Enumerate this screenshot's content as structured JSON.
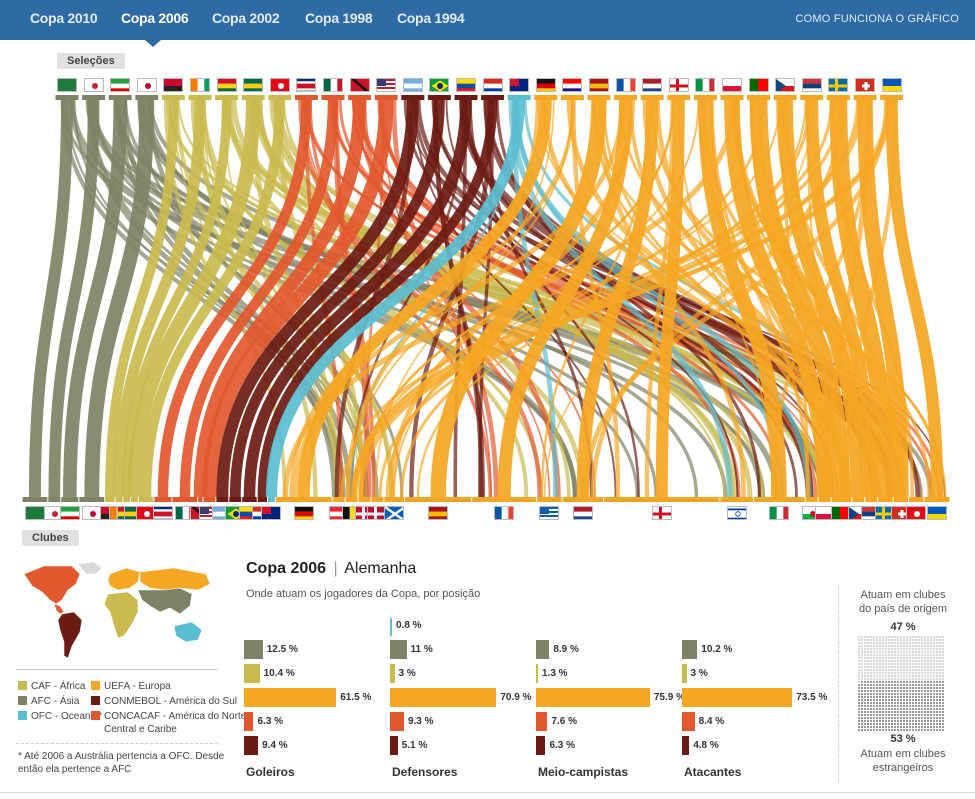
{
  "nav": {
    "tabs": [
      "Copa 2010",
      "Copa 2006",
      "Copa 2002",
      "Copa 1998",
      "Copa 1994"
    ],
    "active_index": 1,
    "how_it_works": "COMO FUNCIONA O GRÁFICO"
  },
  "labels": {
    "selecoes": "Seleções",
    "clubes": "Clubes"
  },
  "colors": {
    "CAF": "#c9bb4f",
    "AFC": "#7f8264",
    "OFC": "#5bbed0",
    "UEFA": "#f5a623",
    "CONMEBOL": "#6b1b13",
    "CONCACAF": "#e2582e"
  },
  "teams_top": [
    {
      "id": "ksa",
      "conf": "AFC"
    },
    {
      "id": "kor",
      "conf": "AFC"
    },
    {
      "id": "irn",
      "conf": "AFC"
    },
    {
      "id": "jpn",
      "conf": "AFC"
    },
    {
      "id": "ang",
      "conf": "CAF"
    },
    {
      "id": "civ",
      "conf": "CAF"
    },
    {
      "id": "gha",
      "conf": "CAF"
    },
    {
      "id": "tog",
      "conf": "CAF"
    },
    {
      "id": "tun",
      "conf": "CAF"
    },
    {
      "id": "crc",
      "conf": "CONCACAF"
    },
    {
      "id": "mex",
      "conf": "CONCACAF"
    },
    {
      "id": "tri",
      "conf": "CONCACAF"
    },
    {
      "id": "usa",
      "conf": "CONCACAF"
    },
    {
      "id": "arg",
      "conf": "CONMEBOL"
    },
    {
      "id": "bra",
      "conf": "CONMEBOL"
    },
    {
      "id": "ecu",
      "conf": "CONMEBOL"
    },
    {
      "id": "par",
      "conf": "CONMEBOL"
    },
    {
      "id": "aus",
      "conf": "OFC"
    },
    {
      "id": "ger",
      "conf": "UEFA"
    },
    {
      "id": "cro",
      "conf": "UEFA"
    },
    {
      "id": "esp",
      "conf": "UEFA"
    },
    {
      "id": "fra",
      "conf": "UEFA"
    },
    {
      "id": "ned",
      "conf": "UEFA"
    },
    {
      "id": "eng",
      "conf": "UEFA"
    },
    {
      "id": "ita",
      "conf": "UEFA"
    },
    {
      "id": "pol",
      "conf": "UEFA"
    },
    {
      "id": "por",
      "conf": "UEFA"
    },
    {
      "id": "cze",
      "conf": "UEFA"
    },
    {
      "id": "scg",
      "conf": "UEFA"
    },
    {
      "id": "swe",
      "conf": "UEFA"
    },
    {
      "id": "sui",
      "conf": "UEFA"
    },
    {
      "id": "ukr",
      "conf": "UEFA"
    }
  ],
  "clubs_bottom": [
    {
      "id": "ksa",
      "conf": "AFC",
      "w": 1
    },
    {
      "id": "kor",
      "conf": "AFC",
      "w": 0.5
    },
    {
      "id": "irn",
      "conf": "AFC",
      "w": 0.7
    },
    {
      "id": "jpn",
      "conf": "AFC",
      "w": 1
    },
    {
      "id": "ang",
      "conf": "CAF",
      "w": 0.4
    },
    {
      "id": "civ",
      "conf": "CAF",
      "w": 0.3
    },
    {
      "id": "gha",
      "conf": "CAF",
      "w": 0.3
    },
    {
      "id": "tog",
      "conf": "CAF",
      "w": 0.3
    },
    {
      "id": "tun",
      "conf": "CAF",
      "w": 0.6
    },
    {
      "id": "crc",
      "conf": "CONCACAF",
      "w": 0.7
    },
    {
      "id": "mex",
      "conf": "CONCACAF",
      "w": 1
    },
    {
      "id": "tri",
      "conf": "CONCACAF",
      "w": 0.2
    },
    {
      "id": "usa",
      "conf": "CONCACAF",
      "w": 0.5
    },
    {
      "id": "arg",
      "conf": "CONMEBOL",
      "w": 0.5
    },
    {
      "id": "bra",
      "conf": "CONMEBOL",
      "w": 0.5
    },
    {
      "id": "ecu",
      "conf": "CONMEBOL",
      "w": 0.6
    },
    {
      "id": "par",
      "conf": "CONMEBOL",
      "w": 0.4
    },
    {
      "id": "aus",
      "conf": "OFC",
      "w": 0.3
    },
    {
      "id": "ger",
      "conf": "UEFA",
      "w": 2.2
    },
    {
      "id": "aut",
      "conf": "UEFA",
      "w": 0.5
    },
    {
      "id": "bel",
      "conf": "UEFA",
      "w": 0.5
    },
    {
      "id": "den",
      "conf": "UEFA",
      "w": 0.5
    },
    {
      "id": "nor",
      "conf": "UEFA",
      "w": 0.5
    },
    {
      "id": "sco",
      "conf": "UEFA",
      "w": 0.8
    },
    {
      "id": "esp",
      "conf": "UEFA",
      "w": 2.6
    },
    {
      "id": "fra",
      "conf": "UEFA",
      "w": 2.5
    },
    {
      "id": "gre",
      "conf": "UEFA",
      "w": 1
    },
    {
      "id": "ned",
      "conf": "UEFA",
      "w": 1.6
    },
    {
      "id": "eng",
      "conf": "UEFA",
      "w": 4.5
    },
    {
      "id": "isr",
      "conf": "UEFA",
      "w": 1.3
    },
    {
      "id": "ita",
      "conf": "UEFA",
      "w": 2
    },
    {
      "id": "wal",
      "conf": "UEFA",
      "w": 0.5
    },
    {
      "id": "pol",
      "conf": "UEFA",
      "w": 0.5
    },
    {
      "id": "por",
      "conf": "UEFA",
      "w": 0.8
    },
    {
      "id": "cze",
      "conf": "UEFA",
      "w": 0.5
    },
    {
      "id": "scg",
      "conf": "UEFA",
      "w": 0.5
    },
    {
      "id": "swe",
      "conf": "UEFA",
      "w": 0.6
    },
    {
      "id": "sui",
      "conf": "UEFA",
      "w": 0.6
    },
    {
      "id": "tur",
      "conf": "UEFA",
      "w": 0.6
    },
    {
      "id": "ukr",
      "conf": "UEFA",
      "w": 1
    }
  ],
  "legend": [
    {
      "code": "CAF",
      "text": "CAF - África"
    },
    {
      "code": "AFC",
      "text": "AFC - Ásia"
    },
    {
      "code": "OFC",
      "text": "OFC - Oceania*"
    },
    {
      "code": "UEFA",
      "text": "UEFA - Europa"
    },
    {
      "code": "CONMEBOL",
      "text": "CONMEBOL - América do Sul"
    },
    {
      "code": "CONCACAF",
      "text": "CONCACAF - América do Norte,"
    },
    {
      "code": "CONCACAF2",
      "text": "Central e Caribe"
    }
  ],
  "footnote": [
    "* Até 2006 a Austrália pertencia a OFC. Desde",
    "então ela pertence a AFC"
  ],
  "panel": {
    "title": "Copa 2006",
    "separator": "|",
    "host": "Alemanha",
    "subtitle": "Onde atuam os jogadores da Copa, por posição"
  },
  "chart_data": {
    "type": "bar",
    "categories": [
      "Goleiros",
      "Defensores",
      "Meio-campistas",
      "Atacantes"
    ],
    "series": [
      {
        "conf": "OFC",
        "values": [
          null,
          0.8,
          null,
          null
        ],
        "labels": [
          "",
          "0.8 %",
          "",
          ""
        ]
      },
      {
        "conf": "AFC",
        "values": [
          12.5,
          11,
          8.9,
          10.2
        ],
        "labels": [
          "12.5 %",
          "11 %",
          "8.9 %",
          "10.2 %"
        ]
      },
      {
        "conf": "CAF",
        "values": [
          10.4,
          3,
          1.3,
          3
        ],
        "labels": [
          "10.4 %",
          "3 %",
          "1.3 %",
          "3 %"
        ]
      },
      {
        "conf": "UEFA",
        "values": [
          61.5,
          70.9,
          75.9,
          73.5
        ],
        "labels": [
          "61.5 %",
          "70.9 %",
          "75.9 %",
          "73.5 %"
        ]
      },
      {
        "conf": "CONCACAF",
        "values": [
          6.3,
          9.3,
          7.6,
          8.4
        ],
        "labels": [
          "6.3 %",
          "9.3 %",
          "7.6 %",
          "8.4 %"
        ]
      },
      {
        "conf": "CONMEBOL",
        "values": [
          9.4,
          5.1,
          6.3,
          4.8
        ],
        "labels": [
          "9.4 %",
          "5.1 %",
          "6.3 %",
          "4.8 %"
        ]
      }
    ]
  },
  "origin_split": {
    "home_text": [
      "Atuam em clubes",
      "do país de origem"
    ],
    "home_pct_label": "47 %",
    "home_pct": 47,
    "abroad_pct_label": "53 %",
    "abroad_pct": 53,
    "abroad_text": [
      "Atuam em clubes",
      "estrangeiros"
    ]
  }
}
